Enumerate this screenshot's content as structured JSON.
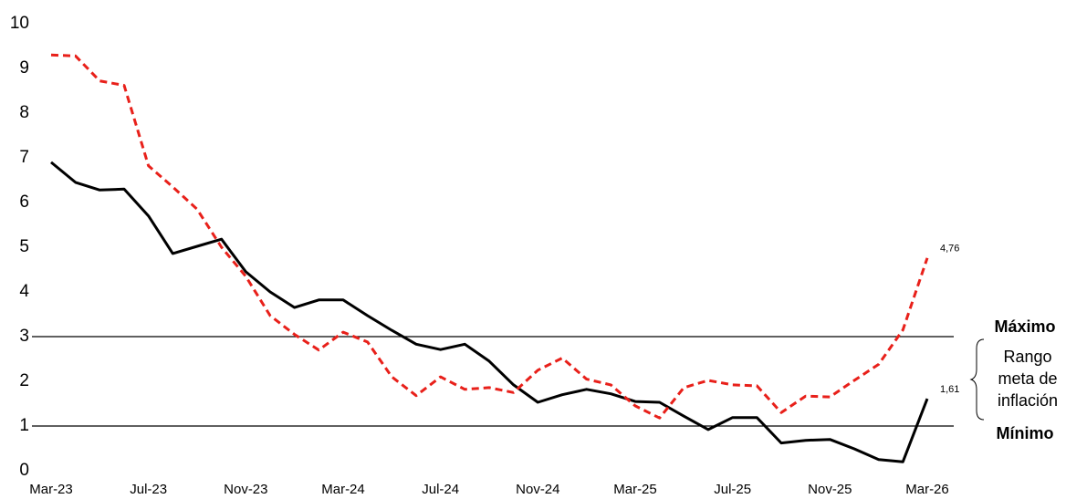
{
  "chart_data": {
    "type": "line",
    "categories": [
      "Mar-23",
      null,
      null,
      null,
      "Jul-23",
      null,
      null,
      null,
      "Nov-23",
      null,
      null,
      null,
      "Mar-24",
      null,
      null,
      null,
      "Jul-24",
      null,
      null,
      null,
      "Nov-24",
      null,
      null,
      null,
      "Mar-25",
      null,
      null,
      null,
      "Jul-25",
      null,
      null,
      null,
      "Nov-25",
      null,
      null,
      null,
      "Mar-26"
    ],
    "series": [
      {
        "color": "#000000",
        "dash": false,
        "values": [
          6.9,
          6.45,
          6.28,
          6.3,
          5.7,
          4.86,
          5.02,
          5.18,
          4.45,
          4.0,
          3.65,
          3.82,
          3.82,
          3.47,
          3.14,
          2.83,
          2.71,
          2.83,
          2.45,
          1.92,
          1.53,
          1.7,
          1.82,
          1.72,
          1.55,
          1.53,
          1.22,
          0.92,
          1.19,
          1.19,
          0.62,
          0.68,
          0.7,
          0.49,
          0.25,
          0.2,
          1.61
        ],
        "value_labels": [
          null,
          null,
          null,
          null,
          null,
          null,
          null,
          null,
          null,
          null,
          null,
          null,
          null,
          null,
          null,
          null,
          null,
          null,
          null,
          null,
          null,
          null,
          null,
          null,
          null,
          null,
          null,
          null,
          null,
          null,
          null,
          null,
          null,
          null,
          null,
          null,
          "1,61"
        ]
      },
      {
        "color": "#e8201a",
        "dash": true,
        "values": [
          9.3,
          9.28,
          8.72,
          8.62,
          6.82,
          6.35,
          5.85,
          5.0,
          4.35,
          3.47,
          3.05,
          2.7,
          3.1,
          2.88,
          2.1,
          1.68,
          2.1,
          1.82,
          1.86,
          1.75,
          2.25,
          2.52,
          2.05,
          1.92,
          1.45,
          1.18,
          1.86,
          2.02,
          1.92,
          1.9,
          1.3,
          1.67,
          1.65,
          2.02,
          2.38,
          3.15,
          4.76
        ],
        "value_labels": [
          null,
          null,
          null,
          null,
          null,
          null,
          null,
          null,
          null,
          null,
          null,
          null,
          null,
          null,
          null,
          null,
          null,
          null,
          null,
          null,
          null,
          null,
          null,
          null,
          null,
          null,
          null,
          null,
          null,
          null,
          null,
          null,
          null,
          null,
          null,
          null,
          "4,76"
        ]
      }
    ],
    "ylim": [
      0,
      10
    ],
    "yticks": [
      0,
      1,
      2,
      3,
      4,
      5,
      6,
      7,
      8,
      9,
      10
    ],
    "reference_lines": [
      {
        "value": 3,
        "label": "Máximo"
      },
      {
        "value": 1,
        "label": "Mínimo"
      }
    ],
    "annotation": [
      "Rango",
      "meta de",
      "inflación"
    ]
  }
}
